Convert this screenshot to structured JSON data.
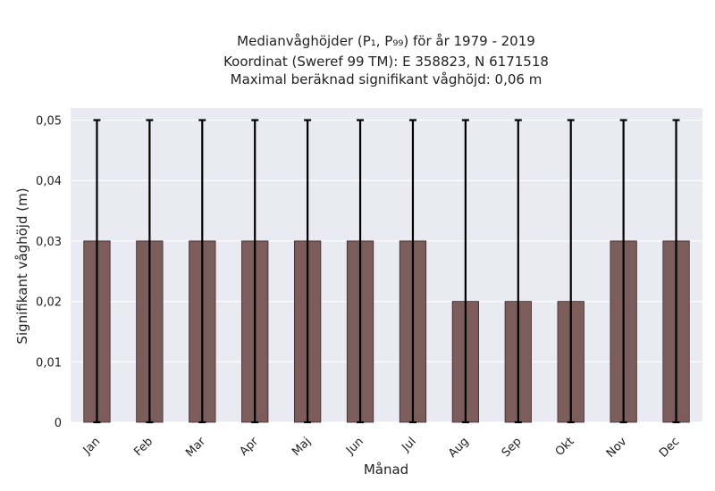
{
  "chart_data": {
    "type": "bar",
    "title_lines": [
      "Medianvåghöjder (P₁, P₉₉) för år 1979 - 2019",
      "Koordinat (Sweref 99 TM): E 358823, N 6171518",
      "Maximal beräknad signifikant våghöjd: 0,06 m"
    ],
    "xlabel": "Månad",
    "ylabel": "Signifikant våghöjd (m)",
    "categories": [
      "Jan",
      "Feb",
      "Mar",
      "Apr",
      "Maj",
      "Jun",
      "Jul",
      "Aug",
      "Sep",
      "Okt",
      "Nov",
      "Dec"
    ],
    "values": [
      0.03,
      0.03,
      0.03,
      0.03,
      0.03,
      0.03,
      0.03,
      0.02,
      0.02,
      0.02,
      0.03,
      0.03
    ],
    "error_low": [
      0,
      0,
      0,
      0,
      0,
      0,
      0,
      0,
      0,
      0,
      0,
      0
    ],
    "error_high": [
      0.05,
      0.05,
      0.05,
      0.05,
      0.05,
      0.05,
      0.05,
      0.05,
      0.05,
      0.05,
      0.05,
      0.05
    ],
    "ylim": [
      0,
      0.052
    ],
    "yticks": [
      0,
      0.01,
      0.02,
      0.03,
      0.04,
      0.05
    ],
    "ytick_labels": [
      "0",
      "0,01",
      "0,02",
      "0,03",
      "0,04",
      "0,05"
    ],
    "grid": true,
    "colors": {
      "bar": "#7d5c5c",
      "bar_edge": "#3a2a2a",
      "plot_bg": "#eaeaf2",
      "grid": "#ffffff",
      "errorbar": "#000000"
    }
  }
}
